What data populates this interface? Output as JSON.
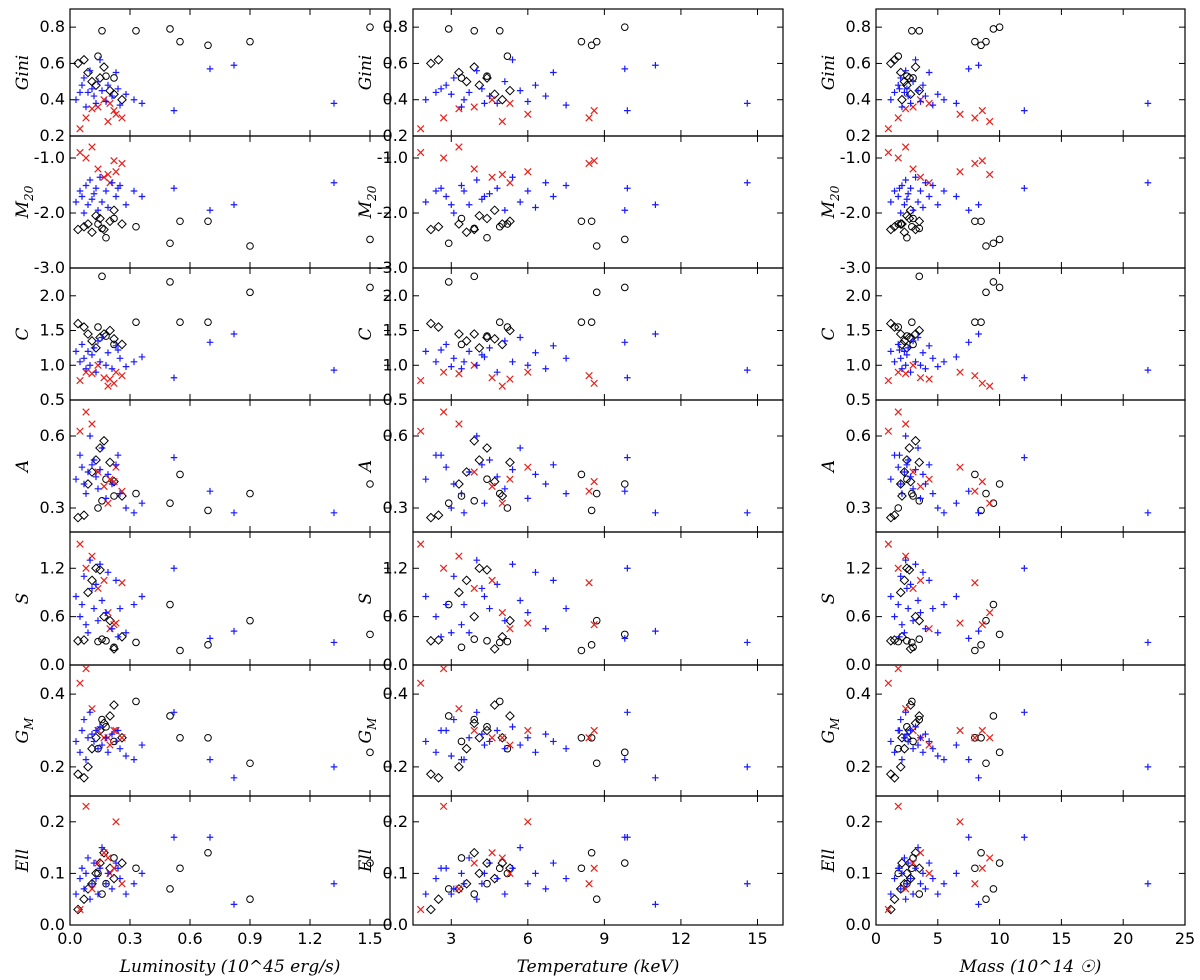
{
  "chart_data": {
    "type": "scatter",
    "grid": false,
    "marker_colors": {
      "plus": "#1a1aff",
      "cross": "#e8201a",
      "circle": "#000000",
      "diamond": "#000000"
    },
    "columns": [
      {
        "xlabel": "Luminosity (10^45 erg/s)",
        "xlim": [
          0.0,
          1.6
        ],
        "xticks": [
          0.0,
          0.3,
          0.6,
          0.9,
          1.2,
          1.5
        ],
        "xtick_labels": [
          "0.0",
          "0.3",
          "0.6",
          "0.9",
          "1.2",
          "1.5"
        ]
      },
      {
        "xlabel": "Temperature (keV)",
        "xlim": [
          1.5,
          16
        ],
        "xticks": [
          3,
          6,
          9,
          12,
          15
        ],
        "xtick_labels": [
          "3",
          "6",
          "9",
          "12",
          "15"
        ]
      },
      {
        "xlabel": "Mass (10^14 ☉)",
        "xlim": [
          0,
          25
        ],
        "xticks": [
          0,
          5,
          10,
          15,
          20,
          25
        ],
        "xtick_labels": [
          "0",
          "5",
          "10",
          "15",
          "20",
          "25"
        ]
      }
    ],
    "rows": [
      {
        "ylabel": "Gini",
        "sub": "",
        "ylim": [
          0.2,
          0.9
        ],
        "yticks": [
          0.2,
          0.4,
          0.6,
          0.8
        ],
        "ytick_labels": [
          "0.2",
          "0.4",
          "0.6",
          "0.8"
        ]
      },
      {
        "ylabel": "M",
        "sub": "20",
        "ylim": [
          -3.0,
          -0.6
        ],
        "yticks": [
          -3.0,
          -2.0,
          -1.0
        ],
        "ytick_labels": [
          "-3.0",
          "-2.0",
          "-1.0"
        ]
      },
      {
        "ylabel": "C",
        "sub": "",
        "ylim": [
          0.5,
          2.4
        ],
        "yticks": [
          0.5,
          1.0,
          1.5,
          2.0
        ],
        "ytick_labels": [
          "0.5",
          "1.0",
          "1.5",
          "2.0"
        ]
      },
      {
        "ylabel": "A",
        "sub": "",
        "ylim": [
          0.2,
          0.75
        ],
        "yticks": [
          0.3,
          0.6
        ],
        "ytick_labels": [
          "0.3",
          "0.6"
        ]
      },
      {
        "ylabel": "S",
        "sub": "",
        "ylim": [
          0.0,
          1.65
        ],
        "yticks": [
          0.0,
          0.6,
          1.2
        ],
        "ytick_labels": [
          "0.0",
          "0.6",
          "1.2"
        ]
      },
      {
        "ylabel": "G",
        "sub": "M",
        "ylim": [
          0.12,
          0.48
        ],
        "yticks": [
          0.2,
          0.4
        ],
        "ytick_labels": [
          "0.2",
          "0.4"
        ]
      },
      {
        "ylabel": "Ell",
        "sub": "",
        "ylim": [
          0.0,
          0.25
        ],
        "yticks": [
          0.0,
          0.1,
          0.2
        ],
        "ytick_labels": [
          "0.0",
          "0.1",
          "0.2"
        ]
      }
    ],
    "clusters": [
      {
        "m": "circle",
        "L": 0.16,
        "T": 3.9,
        "M": 3.5,
        "v": [
          0.78,
          -2.28,
          2.28,
          0.33,
          0.32,
          0.33,
          0.06
        ]
      },
      {
        "m": "circle",
        "L": 0.33,
        "T": 4.9,
        "M": 2.9,
        "v": [
          0.78,
          -2.25,
          1.62,
          0.36,
          0.28,
          0.38,
          0.11
        ]
      },
      {
        "m": "circle",
        "L": 0.5,
        "T": 2.9,
        "M": 9.5,
        "v": [
          0.79,
          -2.55,
          2.2,
          0.32,
          0.75,
          0.34,
          0.07
        ]
      },
      {
        "m": "circle",
        "L": 0.55,
        "T": 8.1,
        "M": 8.0,
        "v": [
          0.72,
          -2.15,
          1.62,
          0.44,
          0.18,
          0.28,
          0.11
        ]
      },
      {
        "m": "circle",
        "L": 0.69,
        "T": 8.5,
        "M": 8.5,
        "v": [
          0.7,
          -2.15,
          1.62,
          0.29,
          0.25,
          0.28,
          0.14
        ]
      },
      {
        "m": "circle",
        "L": 0.9,
        "T": 8.7,
        "M": 8.9,
        "v": [
          0.72,
          -2.6,
          2.05,
          0.36,
          0.55,
          0.21,
          0.05
        ]
      },
      {
        "m": "circle",
        "L": 1.5,
        "T": 9.8,
        "M": 10.0,
        "v": [
          0.8,
          -2.48,
          2.12,
          0.4,
          0.38,
          0.24,
          0.12
        ]
      },
      {
        "m": "circle",
        "L": 0.18,
        "T": 4.4,
        "M": 2.5,
        "v": [
          0.53,
          -2.45,
          1.42,
          0.42,
          0.3,
          0.31,
          0.08
        ]
      },
      {
        "m": "circle",
        "L": 0.22,
        "T": 3.4,
        "M": 3.0,
        "v": [
          0.52,
          -2.1,
          1.3,
          0.35,
          0.22,
          0.27,
          0.13
        ]
      },
      {
        "m": "circle",
        "L": 0.14,
        "T": 5.2,
        "M": 1.8,
        "v": [
          0.64,
          -2.2,
          1.55,
          0.3,
          0.29,
          0.25,
          0.1
        ]
      },
      {
        "m": "diamond",
        "L": 0.04,
        "T": 2.2,
        "M": 1.2,
        "v": [
          0.6,
          -2.3,
          1.6,
          0.26,
          0.3,
          0.18,
          0.03
        ]
      },
      {
        "m": "diamond",
        "L": 0.07,
        "T": 2.5,
        "M": 1.5,
        "v": [
          0.62,
          -2.25,
          1.55,
          0.27,
          0.31,
          0.17,
          0.05
        ]
      },
      {
        "m": "diamond",
        "L": 0.09,
        "T": 3.3,
        "M": 2.0,
        "v": [
          0.55,
          -2.2,
          1.45,
          0.4,
          0.9,
          0.2,
          0.07
        ]
      },
      {
        "m": "diamond",
        "L": 0.11,
        "T": 3.6,
        "M": 2.3,
        "v": [
          0.5,
          -2.35,
          1.35,
          0.45,
          1.05,
          0.25,
          0.08
        ]
      },
      {
        "m": "diamond",
        "L": 0.13,
        "T": 4.1,
        "M": 2.5,
        "v": [
          0.48,
          -2.05,
          1.25,
          0.5,
          1.2,
          0.28,
          0.1
        ]
      },
      {
        "m": "diamond",
        "L": 0.15,
        "T": 4.4,
        "M": 2.7,
        "v": [
          0.52,
          -2.1,
          1.4,
          0.55,
          1.18,
          0.3,
          0.12
        ]
      },
      {
        "m": "diamond",
        "L": 0.17,
        "T": 3.9,
        "M": 3.2,
        "v": [
          0.58,
          -2.3,
          1.45,
          0.58,
          0.6,
          0.32,
          0.14
        ]
      },
      {
        "m": "diamond",
        "L": 0.2,
        "T": 5.3,
        "M": 3.5,
        "v": [
          0.45,
          -2.15,
          1.5,
          0.49,
          0.55,
          0.34,
          0.11
        ]
      },
      {
        "m": "diamond",
        "L": 0.22,
        "T": 4.7,
        "M": 2.8,
        "v": [
          0.43,
          -1.95,
          1.38,
          0.41,
          0.2,
          0.37,
          0.09
        ]
      },
      {
        "m": "diamond",
        "L": 0.26,
        "T": 5.0,
        "M": 2.1,
        "v": [
          0.4,
          -2.2,
          1.3,
          0.35,
          0.35,
          0.28,
          0.12
        ]
      },
      {
        "m": "cross",
        "L": 0.05,
        "T": 1.8,
        "M": 1.0,
        "v": [
          0.24,
          -0.9,
          0.78,
          0.62,
          1.5,
          0.43,
          0.03
        ]
      },
      {
        "m": "cross",
        "L": 0.08,
        "T": 2.7,
        "M": 1.8,
        "v": [
          0.3,
          -1.0,
          0.9,
          0.7,
          1.2,
          0.47,
          0.23
        ]
      },
      {
        "m": "cross",
        "L": 0.11,
        "T": 3.3,
        "M": 2.4,
        "v": [
          0.35,
          -0.8,
          0.88,
          0.65,
          1.35,
          0.36,
          0.07
        ]
      },
      {
        "m": "cross",
        "L": 0.14,
        "T": 3.9,
        "M": 3.0,
        "v": [
          0.36,
          -1.2,
          1.0,
          0.45,
          0.95,
          0.3,
          0.12
        ]
      },
      {
        "m": "cross",
        "L": 0.17,
        "T": 4.6,
        "M": 3.6,
        "v": [
          0.4,
          -1.35,
          0.82,
          0.39,
          1.05,
          0.28,
          0.14
        ]
      },
      {
        "m": "cross",
        "L": 0.2,
        "T": 5.3,
        "M": 4.3,
        "v": [
          0.38,
          -1.45,
          0.8,
          0.42,
          0.45,
          0.26,
          0.1
        ]
      },
      {
        "m": "cross",
        "L": 0.23,
        "T": 6.0,
        "M": 6.8,
        "v": [
          0.32,
          -1.25,
          0.9,
          0.47,
          0.52,
          0.3,
          0.2
        ]
      },
      {
        "m": "cross",
        "L": 0.26,
        "T": 8.4,
        "M": 8.0,
        "v": [
          0.3,
          -1.1,
          0.85,
          0.37,
          1.02,
          0.28,
          0.08
        ]
      },
      {
        "m": "cross",
        "L": 0.22,
        "T": 8.6,
        "M": 8.6,
        "v": [
          0.34,
          -1.05,
          0.74,
          0.41,
          0.5,
          0.3,
          0.11
        ]
      },
      {
        "m": "cross",
        "L": 0.19,
        "T": 5.0,
        "M": 9.2,
        "v": [
          0.28,
          -1.3,
          0.7,
          0.32,
          0.65,
          0.28,
          0.13
        ]
      },
      {
        "m": "plus",
        "L": 0.03,
        "T": 2.0,
        "M": 1.2,
        "v": [
          0.4,
          -1.8,
          1.2,
          0.42,
          0.85,
          0.27,
          0.06
        ]
      },
      {
        "m": "plus",
        "L": 0.05,
        "T": 2.4,
        "M": 1.5,
        "v": [
          0.44,
          -1.6,
          1.05,
          0.52,
          0.6,
          0.24,
          0.09
        ]
      },
      {
        "m": "plus",
        "L": 0.06,
        "T": 2.8,
        "M": 1.8,
        "v": [
          0.48,
          -1.7,
          1.3,
          0.47,
          0.75,
          0.3,
          0.11
        ]
      },
      {
        "m": "plus",
        "L": 0.07,
        "T": 3.1,
        "M": 2.0,
        "v": [
          0.52,
          -2.0,
          1.1,
          0.4,
          1.1,
          0.33,
          0.07
        ]
      },
      {
        "m": "plus",
        "L": 0.08,
        "T": 3.4,
        "M": 2.1,
        "v": [
          0.36,
          -1.5,
          0.95,
          0.36,
          0.5,
          0.22,
          0.1
        ]
      },
      {
        "m": "plus",
        "L": 0.09,
        "T": 3.7,
        "M": 2.3,
        "v": [
          0.44,
          -1.85,
          1.2,
          0.45,
          0.4,
          0.28,
          0.13
        ]
      },
      {
        "m": "plus",
        "L": 0.1,
        "T": 4.0,
        "M": 2.4,
        "v": [
          0.56,
          -1.4,
          1.0,
          0.6,
          1.3,
          0.35,
          0.05
        ]
      },
      {
        "m": "plus",
        "L": 0.11,
        "T": 4.2,
        "M": 2.5,
        "v": [
          0.46,
          -1.75,
          1.15,
          0.48,
          0.95,
          0.29,
          0.08
        ]
      },
      {
        "m": "plus",
        "L": 0.12,
        "T": 4.5,
        "M": 2.6,
        "v": [
          0.42,
          -1.65,
          1.25,
          0.5,
          0.7,
          0.27,
          0.12
        ]
      },
      {
        "m": "plus",
        "L": 0.13,
        "T": 4.8,
        "M": 2.8,
        "v": [
          0.38,
          -1.55,
          0.9,
          0.43,
          1.0,
          0.3,
          0.09
        ]
      },
      {
        "m": "plus",
        "L": 0.14,
        "T": 5.1,
        "M": 3.0,
        "v": [
          0.5,
          -1.95,
          1.35,
          0.38,
          0.55,
          0.25,
          0.06
        ]
      },
      {
        "m": "plus",
        "L": 0.15,
        "T": 5.4,
        "M": 3.2,
        "v": [
          0.62,
          -1.35,
          1.05,
          0.46,
          1.25,
          0.31,
          0.11
        ]
      },
      {
        "m": "plus",
        "L": 0.16,
        "T": 5.7,
        "M": 3.4,
        "v": [
          0.45,
          -1.8,
          1.4,
          0.55,
          0.8,
          0.26,
          0.15
        ]
      },
      {
        "m": "plus",
        "L": 0.18,
        "T": 6.0,
        "M": 3.6,
        "v": [
          0.39,
          -1.6,
          1.0,
          0.34,
          0.65,
          0.28,
          0.08
        ]
      },
      {
        "m": "plus",
        "L": 0.19,
        "T": 6.3,
        "M": 3.8,
        "v": [
          0.48,
          -1.9,
          1.18,
          0.44,
          1.15,
          0.24,
          0.1
        ]
      },
      {
        "m": "plus",
        "L": 0.21,
        "T": 6.7,
        "M": 4.0,
        "v": [
          0.42,
          -1.45,
          0.95,
          0.4,
          0.45,
          0.29,
          0.07
        ]
      },
      {
        "m": "plus",
        "L": 0.23,
        "T": 7.0,
        "M": 4.3,
        "v": [
          0.55,
          -1.7,
          1.28,
          0.48,
          1.05,
          0.27,
          0.12
        ]
      },
      {
        "m": "plus",
        "L": 0.25,
        "T": 7.5,
        "M": 4.6,
        "v": [
          0.37,
          -1.5,
          1.1,
          0.36,
          0.7,
          0.25,
          0.09
        ]
      },
      {
        "m": "plus",
        "L": 0.28,
        "T": 3.0,
        "M": 5.0,
        "v": [
          0.43,
          -1.85,
          0.98,
          0.3,
          0.4,
          0.23,
          0.06
        ]
      },
      {
        "m": "plus",
        "L": 0.32,
        "T": 3.5,
        "M": 5.5,
        "v": [
          0.4,
          -1.6,
          1.05,
          0.28,
          0.75,
          0.22,
          0.08
        ]
      },
      {
        "m": "plus",
        "L": 0.36,
        "T": 4.3,
        "M": 6.5,
        "v": [
          0.38,
          -1.7,
          1.12,
          0.32,
          0.85,
          0.26,
          0.1
        ]
      },
      {
        "m": "plus",
        "L": 0.24,
        "T": 2.6,
        "M": 1.9,
        "v": [
          0.46,
          -1.55,
          1.22,
          0.52,
          0.35,
          0.3,
          0.11
        ]
      },
      {
        "m": "plus",
        "L": 0.52,
        "T": 9.9,
        "M": 12.0,
        "v": [
          0.34,
          -1.55,
          0.82,
          0.51,
          1.2,
          0.35,
          0.17
        ]
      },
      {
        "m": "plus",
        "L": 0.7,
        "T": 9.8,
        "M": 7.5,
        "v": [
          0.57,
          -1.95,
          1.33,
          0.37,
          0.33,
          0.22,
          0.17
        ]
      },
      {
        "m": "plus",
        "L": 0.82,
        "T": 11.0,
        "M": 8.3,
        "v": [
          0.59,
          -1.85,
          1.45,
          0.28,
          0.42,
          0.17,
          0.04
        ]
      },
      {
        "m": "plus",
        "L": 1.32,
        "T": 14.6,
        "M": 22.0,
        "v": [
          0.38,
          -1.45,
          0.93,
          0.28,
          0.28,
          0.2,
          0.08
        ]
      }
    ]
  }
}
